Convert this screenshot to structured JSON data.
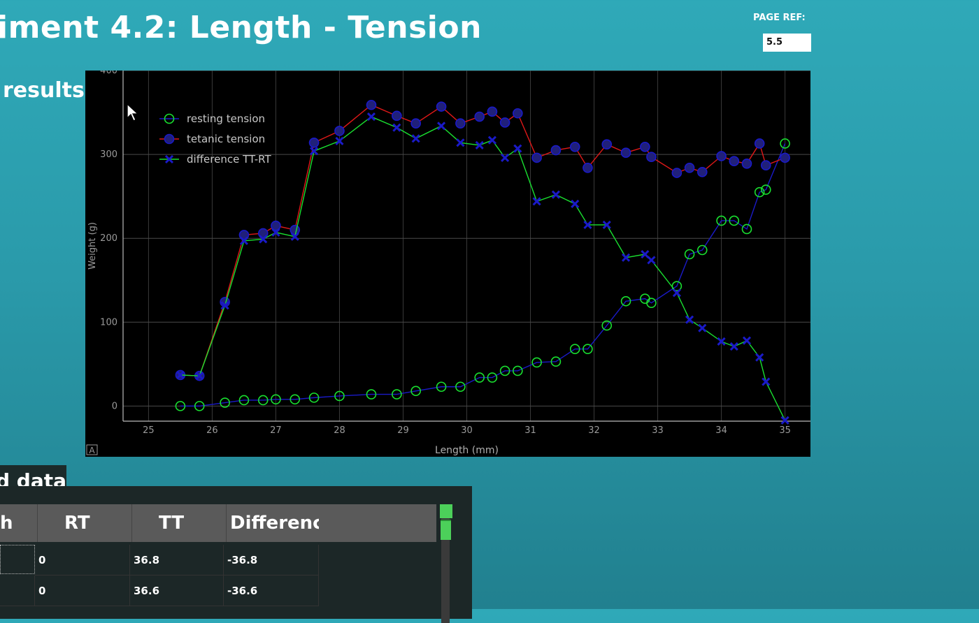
{
  "header": {
    "title": "iment 4.2: Length - Tension",
    "page_ref_label": "PAGE REF:",
    "page_ref_value": "5.5"
  },
  "results_heading": "results",
  "chart_data": {
    "type": "line",
    "title": "",
    "xlabel": "Length (mm)",
    "ylabel": "Weight (g)",
    "xlim": [
      24.6,
      35.4
    ],
    "ylim": [
      -18,
      400
    ],
    "xticks": [
      25,
      26,
      27,
      28,
      29,
      30,
      31,
      32,
      33,
      34,
      35
    ],
    "yticks": [
      0,
      100,
      200,
      300,
      400
    ],
    "grid": true,
    "legend_position": "top-left",
    "corner_label": "A",
    "x": [
      25.5,
      25.8,
      26.2,
      26.5,
      26.8,
      27.0,
      27.3,
      27.6,
      28.0,
      28.5,
      28.9,
      29.2,
      29.6,
      29.9,
      30.2,
      30.4,
      30.6,
      30.8,
      31.1,
      31.4,
      31.7,
      31.9,
      32.2,
      32.5,
      32.8,
      32.9,
      33.3,
      33.5,
      33.7,
      34.0,
      34.2,
      34.4,
      34.6,
      34.7,
      35.0
    ],
    "series": [
      {
        "name": "resting tension",
        "color": "#19e030",
        "line_color": "#1a1ac8",
        "marker": "circle",
        "values": [
          0,
          0,
          4,
          7,
          7,
          8,
          8,
          10,
          12,
          14,
          14,
          18,
          23,
          23,
          34,
          34,
          42,
          42,
          52,
          53,
          68,
          68,
          96,
          125,
          128,
          123,
          143,
          181,
          186,
          221,
          221,
          211,
          255,
          258,
          313
        ]
      },
      {
        "name": "tetanic tension",
        "color": "#1a1ac8",
        "line_color": "#e01818",
        "marker": "circle",
        "values": [
          37,
          36,
          124,
          204,
          206,
          215,
          210,
          314,
          328,
          359,
          346,
          337,
          357,
          337,
          345,
          351,
          338,
          349,
          296,
          305,
          309,
          284,
          312,
          302,
          309,
          297,
          278,
          284,
          279,
          298,
          292,
          289,
          313,
          287,
          296
        ]
      },
      {
        "name": "difference TT-RT",
        "color": "#1a1ac8",
        "line_color": "#19e030",
        "marker": "x",
        "values": [
          37,
          36,
          120,
          197,
          199,
          207,
          202,
          304,
          316,
          345,
          332,
          319,
          334,
          314,
          311,
          317,
          296,
          307,
          244,
          252,
          241,
          216,
          216,
          177,
          181,
          174,
          135,
          103,
          93,
          77,
          71,
          78,
          58,
          29,
          -17
        ]
      }
    ]
  },
  "data_section": {
    "heading": "d data",
    "columns": [
      "h",
      "RT",
      "TT",
      "Differenc"
    ],
    "rows": [
      {
        "length": "",
        "rt": "0",
        "tt": "36.8",
        "diff": "-36.8"
      },
      {
        "length": "",
        "rt": "0",
        "tt": "36.6",
        "diff": "-36.6"
      }
    ]
  }
}
